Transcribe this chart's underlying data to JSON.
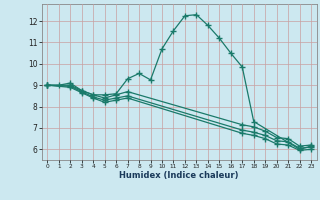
{
  "xlabel": "Humidex (Indice chaleur)",
  "bg_color": "#cce8f0",
  "grid_color": "#dddddd",
  "line_color": "#1a7a6a",
  "xlim": [
    -0.5,
    23.5
  ],
  "ylim": [
    5.5,
    12.8
  ],
  "xticks": [
    0,
    1,
    2,
    3,
    4,
    5,
    6,
    7,
    8,
    9,
    10,
    11,
    12,
    13,
    14,
    15,
    16,
    17,
    18,
    19,
    20,
    21,
    22,
    23
  ],
  "yticks": [
    6,
    7,
    8,
    9,
    10,
    11,
    12
  ],
  "lines": [
    {
      "x": [
        0,
        1,
        2,
        3,
        4,
        5,
        6,
        7,
        8,
        9,
        10,
        11,
        12,
        13,
        14,
        15,
        16,
        17,
        18,
        22,
        23
      ],
      "y": [
        9.0,
        9.0,
        9.1,
        8.75,
        8.55,
        8.55,
        8.6,
        9.3,
        9.55,
        9.25,
        10.7,
        11.55,
        12.25,
        12.3,
        11.8,
        11.2,
        10.5,
        9.85,
        7.3,
        6.0,
        6.15
      ]
    },
    {
      "x": [
        0,
        2,
        3,
        4,
        5,
        6,
        7,
        17,
        18,
        19,
        20,
        21,
        22,
        23
      ],
      "y": [
        9.0,
        9.0,
        8.75,
        8.55,
        8.4,
        8.55,
        8.7,
        7.15,
        7.05,
        6.85,
        6.55,
        6.5,
        6.15,
        6.2
      ]
    },
    {
      "x": [
        0,
        2,
        3,
        4,
        5,
        6,
        7,
        17,
        18,
        19,
        20,
        21,
        22,
        23
      ],
      "y": [
        9.0,
        8.95,
        8.7,
        8.45,
        8.3,
        8.4,
        8.5,
        6.9,
        6.8,
        6.65,
        6.4,
        6.35,
        6.05,
        6.1
      ]
    },
    {
      "x": [
        0,
        2,
        3,
        4,
        5,
        6,
        7,
        17,
        18,
        19,
        20,
        21,
        22,
        23
      ],
      "y": [
        9.0,
        8.9,
        8.65,
        8.4,
        8.2,
        8.3,
        8.4,
        6.75,
        6.65,
        6.5,
        6.25,
        6.2,
        5.95,
        6.0
      ]
    }
  ]
}
